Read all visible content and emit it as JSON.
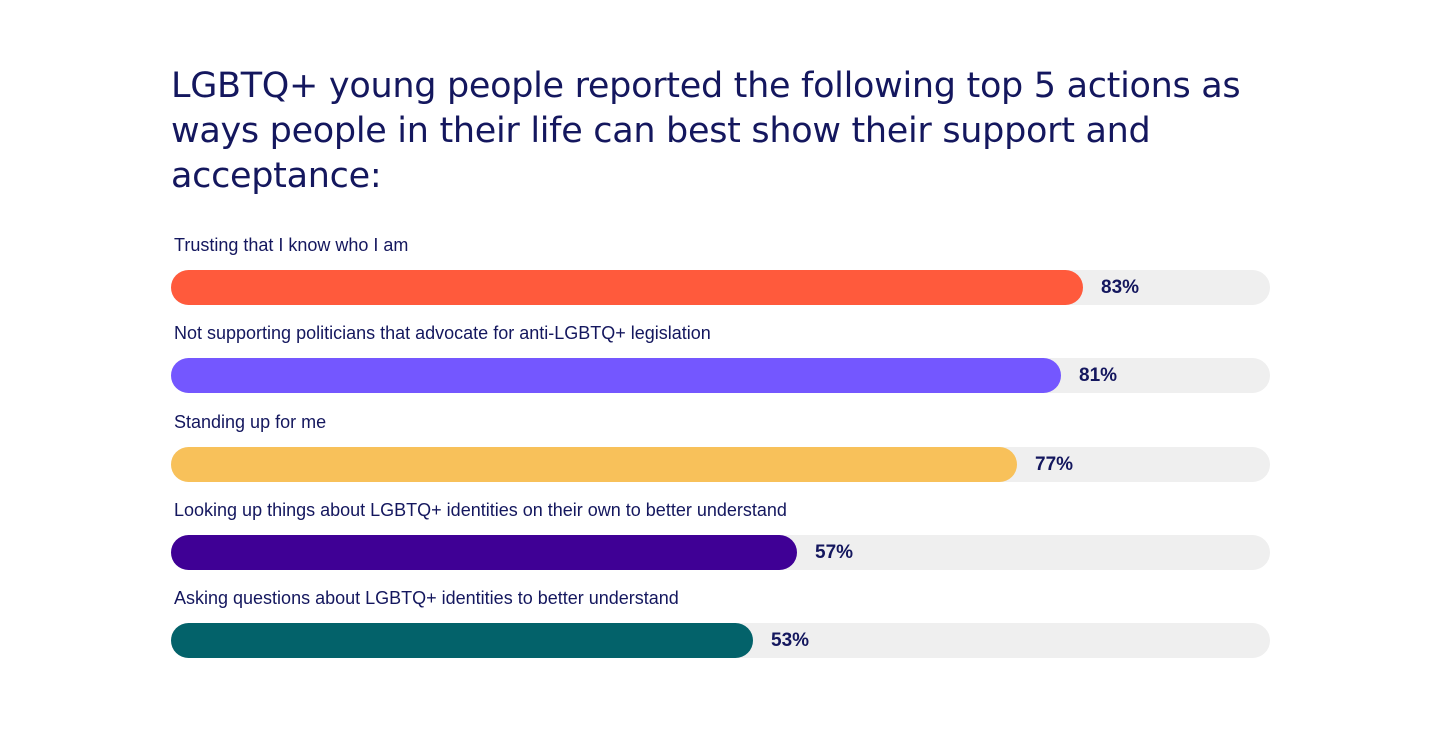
{
  "chart_data": {
    "type": "bar",
    "orientation": "horizontal",
    "title": "LGBTQ+ young people reported the following top 5 actions as ways people in their life can best show their support and acceptance:",
    "categories": [
      "Trusting that I know who I am",
      "Not supporting politicians that advocate for anti-LGBTQ+ legislation",
      "Standing up for me",
      "Looking up things about LGBTQ+ identities on their own to better understand",
      "Asking questions about LGBTQ+ identities to better understand"
    ],
    "values": [
      83,
      81,
      77,
      57,
      53
    ],
    "value_labels": [
      "83%",
      "81%",
      "77%",
      "57%",
      "53%"
    ],
    "colors": [
      "#ff5a3c",
      "#7457ff",
      "#f8c15a",
      "#3f0095",
      "#03626a"
    ],
    "track_color": "#efefef",
    "xlim": [
      0,
      100
    ],
    "grid": false,
    "legend": "none"
  }
}
